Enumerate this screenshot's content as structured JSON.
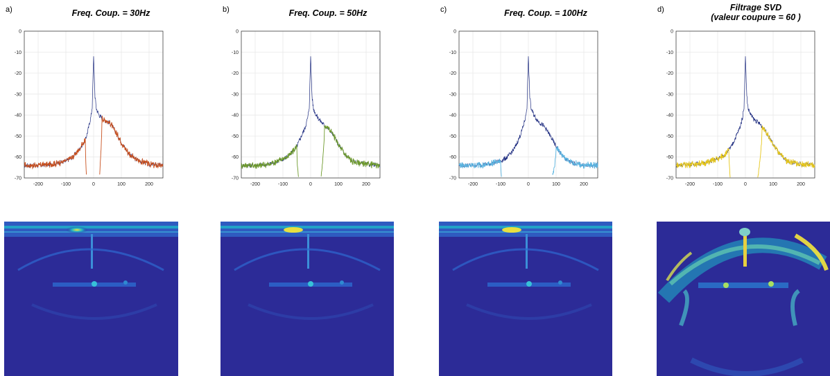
{
  "chart_data": [
    {
      "type": "line",
      "panel_label": "a)",
      "title": "Freq. Coup. = 30Hz",
      "xlabel": "",
      "ylabel": "",
      "xlim": [
        -250,
        250
      ],
      "ylim": [
        -70,
        0
      ],
      "xticks": [
        -200,
        -100,
        0,
        100,
        200
      ],
      "yticks": [
        0,
        -10,
        -20,
        -30,
        -40,
        -50,
        -60,
        -70
      ],
      "grid": true,
      "cutoff": 30,
      "colors": {
        "raw": "#1f2d80",
        "filtered": "#c8501e"
      },
      "series": [
        {
          "x": [
            -250,
            -200,
            -150,
            -100,
            -75,
            -50,
            -40,
            -30,
            -20,
            -10,
            -5,
            0,
            5,
            10,
            20,
            30,
            40,
            50,
            60,
            75,
            100,
            125,
            150,
            200,
            250
          ],
          "values": [
            -64,
            -64,
            -63.5,
            -62,
            -60,
            -56,
            -54,
            -52,
            -47,
            -41,
            -36,
            -12,
            -31,
            -37,
            -40,
            -41.5,
            -42.5,
            -43,
            -44,
            -47,
            -53,
            -58,
            -61,
            -63.5,
            -64
          ]
        }
      ]
    },
    {
      "type": "line",
      "panel_label": "b)",
      "title": "Freq. Coup. = 50Hz",
      "xlabel": "",
      "ylabel": "",
      "xlim": [
        -250,
        250
      ],
      "ylim": [
        -70,
        0
      ],
      "xticks": [
        -200,
        -100,
        0,
        100,
        200
      ],
      "yticks": [
        0,
        -10,
        -20,
        -30,
        -40,
        -50,
        -60,
        -70
      ],
      "grid": true,
      "cutoff": 50,
      "colors": {
        "raw": "#1f2d80",
        "filtered": "#6e9a2c"
      },
      "series": [
        {
          "x": [
            -250,
            -200,
            -150,
            -100,
            -75,
            -50,
            -40,
            -30,
            -20,
            -10,
            -5,
            0,
            5,
            10,
            20,
            30,
            40,
            50,
            60,
            75,
            100,
            125,
            150,
            200,
            250
          ],
          "values": [
            -64,
            -64,
            -63.5,
            -61,
            -59,
            -55,
            -52,
            -49,
            -46,
            -41,
            -36,
            -12,
            -31,
            -37,
            -40,
            -42,
            -43.5,
            -45,
            -46,
            -48,
            -54,
            -59,
            -62,
            -63.5,
            -64
          ]
        }
      ]
    },
    {
      "type": "line",
      "panel_label": "c)",
      "title": "Freq. Coup. = 100Hz",
      "xlabel": "",
      "ylabel": "",
      "xlim": [
        -250,
        250
      ],
      "ylim": [
        -70,
        0
      ],
      "xticks": [
        -200,
        -100,
        0,
        100,
        200
      ],
      "yticks": [
        0,
        -10,
        -20,
        -30,
        -40,
        -50,
        -60,
        -70
      ],
      "grid": true,
      "cutoff": 100,
      "colors": {
        "raw": "#1f2d80",
        "filtered": "#5ab4e0"
      },
      "series": [
        {
          "x": [
            -250,
            -200,
            -150,
            -100,
            -75,
            -50,
            -40,
            -30,
            -20,
            -10,
            -5,
            0,
            5,
            10,
            20,
            30,
            40,
            50,
            60,
            75,
            100,
            125,
            150,
            200,
            250
          ],
          "values": [
            -64,
            -64,
            -63.5,
            -62,
            -60,
            -56,
            -53,
            -50,
            -46,
            -41,
            -36,
            -12,
            -31,
            -37,
            -40,
            -42,
            -43.5,
            -44.5,
            -46,
            -49,
            -55,
            -60,
            -62.5,
            -64,
            -64
          ]
        }
      ]
    },
    {
      "type": "line",
      "panel_label": "d)",
      "title": "Filtrage SVD",
      "subtitle": "(valeur coupure = 60 )",
      "xlabel": "",
      "ylabel": "",
      "xlim": [
        -250,
        250
      ],
      "ylim": [
        -70,
        0
      ],
      "xticks": [
        -200,
        -100,
        0,
        100,
        200
      ],
      "yticks": [
        0,
        -10,
        -20,
        -30,
        -40,
        -50,
        -60,
        -70
      ],
      "grid": true,
      "cutoff": 60,
      "colors": {
        "raw": "#1f2d80",
        "filtered": "#e6c619"
      },
      "series": [
        {
          "x": [
            -250,
            -200,
            -150,
            -100,
            -75,
            -50,
            -40,
            -30,
            -20,
            -10,
            -5,
            0,
            5,
            10,
            20,
            30,
            40,
            50,
            60,
            75,
            100,
            125,
            150,
            200,
            250
          ],
          "values": [
            -64,
            -63.5,
            -63,
            -61,
            -59,
            -55,
            -52,
            -49,
            -46,
            -41,
            -36,
            -12,
            -31,
            -37,
            -40,
            -42,
            -43,
            -44,
            -45.5,
            -48,
            -54,
            -59,
            -62,
            -63.5,
            -64
          ]
        }
      ]
    }
  ],
  "image_colors": {
    "background": "#2c2b97",
    "bright": "#f5e63c",
    "mid": "#1fb4c8",
    "low": "#2b5cc7"
  }
}
